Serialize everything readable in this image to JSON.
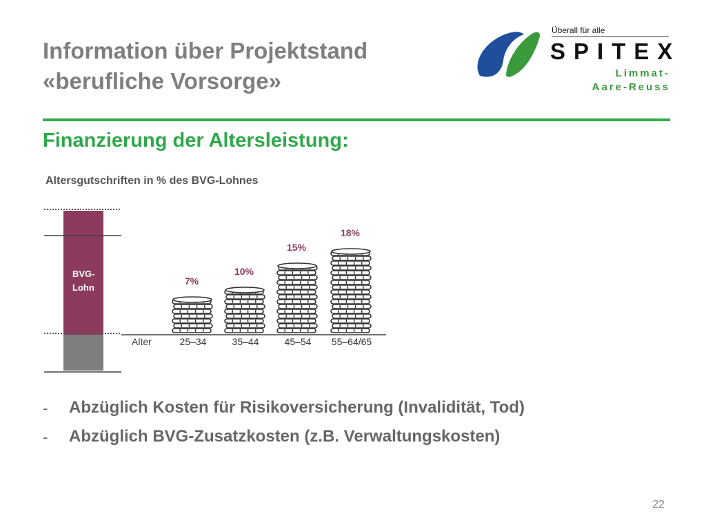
{
  "header": {
    "title_line1": "Information über Projektstand",
    "title_line2": "«berufliche Vorsorge»"
  },
  "logo": {
    "tagline": "Überall für alle",
    "brand": "SPITEX",
    "region_line1": "Limmat-",
    "region_line2": "Aare-Reuss",
    "colors": {
      "blue": "#1f4e9a",
      "green": "#3a9a3c"
    }
  },
  "section": {
    "heading": "Finanzierung der Altersleistung:"
  },
  "bullets": [
    {
      "dash": "-",
      "text": "Abzüglich Kosten für Risikoversicherung (Invalidität, Tod)"
    },
    {
      "dash": "-",
      "text": "Abzüglich BVG-Zusatzkosten (z.B. Verwaltungskosten)"
    }
  ],
  "page_number": "22",
  "chart_data": {
    "type": "bar",
    "title": "Altersgutschriften in % des BVG-Lohnes",
    "x_axis_label": "Alter",
    "categories": [
      "25–34",
      "35–44",
      "45–54",
      "55–64/65"
    ],
    "values": [
      7,
      10,
      15,
      18
    ],
    "data_labels": [
      "7%",
      "10%",
      "15%",
      "18%"
    ],
    "unit": "%",
    "ylim": [
      0,
      20
    ],
    "salary_block": {
      "label_line1": "BVG-",
      "label_line2": "Lohn"
    },
    "colors": {
      "salary_block": "#8c3b5e",
      "salary_band": "#7f7f7f",
      "data_label": "#8c3b5e",
      "coins": "#333333"
    }
  }
}
